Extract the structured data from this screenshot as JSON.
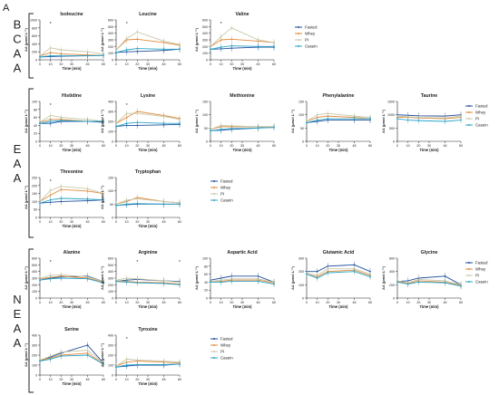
{
  "panel_label": "A",
  "group_letters": [
    "BCAA",
    "EAA",
    "NEAA"
  ],
  "xlabel": "Time (min)",
  "ylabel": "AA (μmol L⁻¹)",
  "x_ticks": [
    0,
    10,
    20,
    30,
    45,
    60
  ],
  "series_names": [
    "Fasted",
    "Whey",
    "PI",
    "Casein"
  ],
  "colors": {
    "Fasted": "#1f4e9c",
    "Whey": "#e08a3c",
    "PI": "#c8c8a8",
    "Casein": "#2aa4c8"
  },
  "chart_data": [
    {
      "type": "line",
      "title": "Isoleucine",
      "group": "BCAA",
      "ylim": [
        0,
        1000
      ],
      "yticks": [
        0,
        200,
        400,
        600,
        800,
        1000
      ],
      "x": [
        0,
        10,
        20,
        45,
        60
      ],
      "series": [
        {
          "name": "Fasted",
          "values": [
            70,
            80,
            90,
            100,
            110
          ]
        },
        {
          "name": "Whey",
          "values": [
            90,
            180,
            150,
            120,
            110
          ]
        },
        {
          "name": "PI",
          "values": [
            90,
            300,
            250,
            200,
            150
          ]
        },
        {
          "name": "Casein",
          "values": [
            70,
            100,
            100,
            100,
            110
          ]
        }
      ],
      "stars": [
        10
      ]
    },
    {
      "type": "line",
      "title": "Leucine",
      "group": "BCAA",
      "ylim": [
        0,
        600
      ],
      "yticks": [
        0,
        100,
        200,
        300,
        400,
        500,
        600
      ],
      "x": [
        0,
        10,
        20,
        45,
        60
      ],
      "series": [
        {
          "name": "Fasted",
          "values": [
            110,
            120,
            125,
            140,
            160
          ]
        },
        {
          "name": "Whey",
          "values": [
            150,
            300,
            310,
            260,
            220
          ]
        },
        {
          "name": "PI",
          "values": [
            150,
            320,
            420,
            280,
            230
          ]
        },
        {
          "name": "Casein",
          "values": [
            110,
            150,
            170,
            160,
            160
          ]
        }
      ],
      "stars": [
        10
      ]
    },
    {
      "type": "line",
      "title": "Valine",
      "group": "BCAA",
      "ylim": [
        0,
        600
      ],
      "yticks": [
        0,
        100,
        200,
        300,
        400,
        500,
        600
      ],
      "x": [
        0,
        10,
        20,
        45,
        60
      ],
      "series": [
        {
          "name": "Fasted",
          "values": [
            160,
            165,
            175,
            190,
            190
          ]
        },
        {
          "name": "Whey",
          "values": [
            200,
            300,
            310,
            280,
            260
          ]
        },
        {
          "name": "PI",
          "values": [
            200,
            350,
            480,
            300,
            260
          ]
        },
        {
          "name": "Casein",
          "values": [
            160,
            190,
            210,
            200,
            200
          ]
        }
      ],
      "stars": [
        10
      ]
    },
    {
      "type": "line",
      "title": "Histidine",
      "group": "EAA",
      "ylim": [
        0,
        100
      ],
      "yticks": [
        0,
        20,
        40,
        60,
        80,
        100
      ],
      "x": [
        0,
        10,
        20,
        45,
        60
      ],
      "series": [
        {
          "name": "Fasted",
          "values": [
            45,
            45,
            50,
            50,
            48
          ]
        },
        {
          "name": "Whey",
          "values": [
            48,
            55,
            55,
            50,
            50
          ]
        },
        {
          "name": "PI",
          "values": [
            48,
            65,
            60,
            55,
            50
          ]
        },
        {
          "name": "Casein",
          "values": [
            45,
            50,
            52,
            50,
            50
          ]
        }
      ],
      "stars": [
        10
      ]
    },
    {
      "type": "line",
      "title": "Lysine",
      "group": "EAA",
      "ylim": [
        0,
        400
      ],
      "yticks": [
        0,
        100,
        200,
        300,
        400
      ],
      "x": [
        0,
        10,
        20,
        45,
        60
      ],
      "series": [
        {
          "name": "Fasted",
          "values": [
            150,
            160,
            160,
            165,
            170
          ]
        },
        {
          "name": "Whey",
          "values": [
            180,
            240,
            300,
            260,
            230
          ]
        },
        {
          "name": "PI",
          "values": [
            180,
            280,
            280,
            250,
            220
          ]
        },
        {
          "name": "Casein",
          "values": [
            150,
            180,
            190,
            180,
            180
          ]
        }
      ],
      "stars": [
        10
      ]
    },
    {
      "type": "line",
      "title": "Methionine",
      "group": "EAA",
      "ylim": [
        0,
        150
      ],
      "yticks": [
        0,
        50,
        100,
        150
      ],
      "x": [
        0,
        10,
        20,
        45,
        60
      ],
      "series": [
        {
          "name": "Fasted",
          "values": [
            40,
            42,
            45,
            50,
            55
          ]
        },
        {
          "name": "Whey",
          "values": [
            45,
            55,
            55,
            55,
            55
          ]
        },
        {
          "name": "PI",
          "values": [
            45,
            60,
            58,
            55,
            55
          ]
        },
        {
          "name": "Casein",
          "values": [
            40,
            45,
            48,
            50,
            52
          ]
        }
      ],
      "stars": []
    },
    {
      "type": "line",
      "title": "Phenylalanine",
      "group": "EAA",
      "ylim": [
        0,
        150
      ],
      "yticks": [
        0,
        50,
        100,
        150
      ],
      "x": [
        0,
        10,
        20,
        45,
        60
      ],
      "series": [
        {
          "name": "Fasted",
          "values": [
            70,
            75,
            80,
            80,
            80
          ]
        },
        {
          "name": "Whey",
          "values": [
            75,
            90,
            95,
            90,
            85
          ]
        },
        {
          "name": "PI",
          "values": [
            75,
            100,
            105,
            95,
            90
          ]
        },
        {
          "name": "Casein",
          "values": [
            70,
            80,
            85,
            85,
            85
          ]
        }
      ],
      "stars": []
    },
    {
      "type": "line",
      "title": "Taurine",
      "group": "EAA",
      "ylim": [
        0,
        1500
      ],
      "yticks": [
        0,
        500,
        1000,
        1500
      ],
      "x": [
        0,
        10,
        20,
        45,
        60
      ],
      "series": [
        {
          "name": "Fasted",
          "values": [
            1000,
            980,
            960,
            950,
            1000
          ]
        },
        {
          "name": "Whey",
          "values": [
            900,
            900,
            880,
            850,
            900
          ]
        },
        {
          "name": "PI",
          "values": [
            950,
            920,
            900,
            880,
            950
          ]
        },
        {
          "name": "Casein",
          "values": [
            850,
            800,
            780,
            750,
            800
          ]
        }
      ],
      "stars": []
    },
    {
      "type": "line",
      "title": "Threonine",
      "group": "EAA",
      "ylim": [
        0,
        250
      ],
      "yticks": [
        0,
        50,
        100,
        150,
        200,
        250
      ],
      "x": [
        0,
        10,
        20,
        45,
        60
      ],
      "series": [
        {
          "name": "Fasted",
          "values": [
            90,
            95,
            100,
            105,
            110
          ]
        },
        {
          "name": "Whey",
          "values": [
            100,
            140,
            175,
            165,
            150
          ]
        },
        {
          "name": "PI",
          "values": [
            100,
            170,
            195,
            180,
            150
          ]
        },
        {
          "name": "Casein",
          "values": [
            90,
            110,
            120,
            115,
            110
          ]
        }
      ],
      "stars": [
        10
      ]
    },
    {
      "type": "line",
      "title": "Tryptophan",
      "group": "EAA",
      "ylim": [
        0,
        150
      ],
      "yticks": [
        0,
        50,
        100,
        150
      ],
      "x": [
        0,
        10,
        20,
        45,
        60
      ],
      "series": [
        {
          "name": "Fasted",
          "values": [
            45,
            48,
            50,
            50,
            50
          ]
        },
        {
          "name": "Whey",
          "values": [
            50,
            60,
            75,
            60,
            55
          ]
        },
        {
          "name": "PI",
          "values": [
            50,
            65,
            70,
            60,
            55
          ]
        },
        {
          "name": "Casein",
          "values": [
            45,
            50,
            52,
            50,
            50
          ]
        }
      ],
      "stars": []
    },
    {
      "type": "line",
      "title": "Alanine",
      "group": "NEAA",
      "ylim": [
        0,
        600
      ],
      "yticks": [
        0,
        100,
        200,
        300,
        400,
        500,
        600
      ],
      "x": [
        0,
        10,
        20,
        45,
        60
      ],
      "series": [
        {
          "name": "Fasted",
          "values": [
            270,
            300,
            320,
            330,
            250
          ]
        },
        {
          "name": "Whey",
          "values": [
            290,
            310,
            330,
            300,
            240
          ]
        },
        {
          "name": "PI",
          "values": [
            300,
            340,
            350,
            320,
            250
          ]
        },
        {
          "name": "Casein",
          "values": [
            270,
            290,
            300,
            290,
            230
          ]
        }
      ],
      "stars": [
        10
      ]
    },
    {
      "type": "line",
      "title": "Arginine",
      "group": "NEAA",
      "ylim": [
        0,
        600
      ],
      "yticks": [
        0,
        100,
        200,
        300,
        400,
        500,
        600
      ],
      "x": [
        0,
        10,
        20,
        45,
        60
      ],
      "series": [
        {
          "name": "Fasted",
          "values": [
            250,
            270,
            280,
            260,
            250
          ]
        },
        {
          "name": "Whey",
          "values": [
            260,
            250,
            240,
            230,
            210
          ]
        },
        {
          "name": "PI",
          "values": [
            270,
            300,
            290,
            260,
            240
          ]
        },
        {
          "name": "Casein",
          "values": [
            250,
            240,
            230,
            220,
            200
          ]
        }
      ],
      "stars": [
        20,
        60
      ]
    },
    {
      "type": "line",
      "title": "Aspartic Acid",
      "group": "NEAA",
      "ylim": [
        0,
        100
      ],
      "yticks": [
        0,
        20,
        40,
        60,
        80,
        100
      ],
      "x": [
        0,
        10,
        20,
        45,
        60
      ],
      "series": [
        {
          "name": "Fasted",
          "values": [
            45,
            50,
            55,
            55,
            40
          ]
        },
        {
          "name": "Whey",
          "values": [
            40,
            42,
            45,
            45,
            38
          ]
        },
        {
          "name": "PI",
          "values": [
            42,
            45,
            48,
            48,
            40
          ]
        },
        {
          "name": "Casein",
          "values": [
            40,
            40,
            42,
            42,
            35
          ]
        }
      ],
      "stars": []
    },
    {
      "type": "line",
      "title": "Glutamic Acid",
      "group": "NEAA",
      "ylim": [
        0,
        300
      ],
      "yticks": [
        0,
        100,
        200,
        300
      ],
      "x": [
        0,
        10,
        20,
        45,
        60
      ],
      "series": [
        {
          "name": "Fasted",
          "values": [
            200,
            200,
            240,
            250,
            200
          ]
        },
        {
          "name": "Whey",
          "values": [
            180,
            160,
            200,
            210,
            170
          ]
        },
        {
          "name": "PI",
          "values": [
            190,
            170,
            220,
            220,
            180
          ]
        },
        {
          "name": "Casein",
          "values": [
            180,
            150,
            190,
            200,
            160
          ]
        }
      ],
      "stars": []
    },
    {
      "type": "line",
      "title": "Glycine",
      "group": "NEAA",
      "ylim": [
        0,
        600
      ],
      "yticks": [
        0,
        200,
        400,
        600
      ],
      "x": [
        0,
        10,
        20,
        45,
        60
      ],
      "series": [
        {
          "name": "Fasted",
          "values": [
            250,
            260,
            300,
            330,
            200
          ]
        },
        {
          "name": "Whey",
          "values": [
            250,
            220,
            260,
            240,
            190
          ]
        },
        {
          "name": "PI",
          "values": [
            260,
            230,
            280,
            260,
            200
          ]
        },
        {
          "name": "Casein",
          "values": [
            240,
            210,
            240,
            230,
            180
          ]
        }
      ],
      "stars": []
    },
    {
      "type": "line",
      "title": "Serine",
      "group": "NEAA",
      "ylim": [
        0,
        400
      ],
      "yticks": [
        0,
        100,
        200,
        300,
        400
      ],
      "x": [
        0,
        10,
        20,
        45,
        60
      ],
      "series": [
        {
          "name": "Fasted",
          "values": [
            140,
            180,
            220,
            300,
            120
          ]
        },
        {
          "name": "Whey",
          "values": [
            150,
            170,
            200,
            220,
            110
          ]
        },
        {
          "name": "PI",
          "values": [
            150,
            190,
            230,
            250,
            120
          ]
        },
        {
          "name": "Casein",
          "values": [
            140,
            160,
            190,
            200,
            110
          ]
        }
      ],
      "stars": []
    },
    {
      "type": "line",
      "title": "Tyrosine",
      "group": "NEAA",
      "ylim": [
        0,
        400
      ],
      "yticks": [
        0,
        100,
        200,
        300,
        400
      ],
      "x": [
        0,
        10,
        20,
        45,
        60
      ],
      "series": [
        {
          "name": "Fasted",
          "values": [
            80,
            90,
            100,
            100,
            110
          ]
        },
        {
          "name": "Whey",
          "values": [
            90,
            130,
            140,
            130,
            120
          ]
        },
        {
          "name": "PI",
          "values": [
            90,
            160,
            150,
            140,
            130
          ]
        },
        {
          "name": "Casein",
          "values": [
            80,
            100,
            105,
            105,
            110
          ]
        }
      ],
      "stars": [
        10
      ]
    }
  ]
}
